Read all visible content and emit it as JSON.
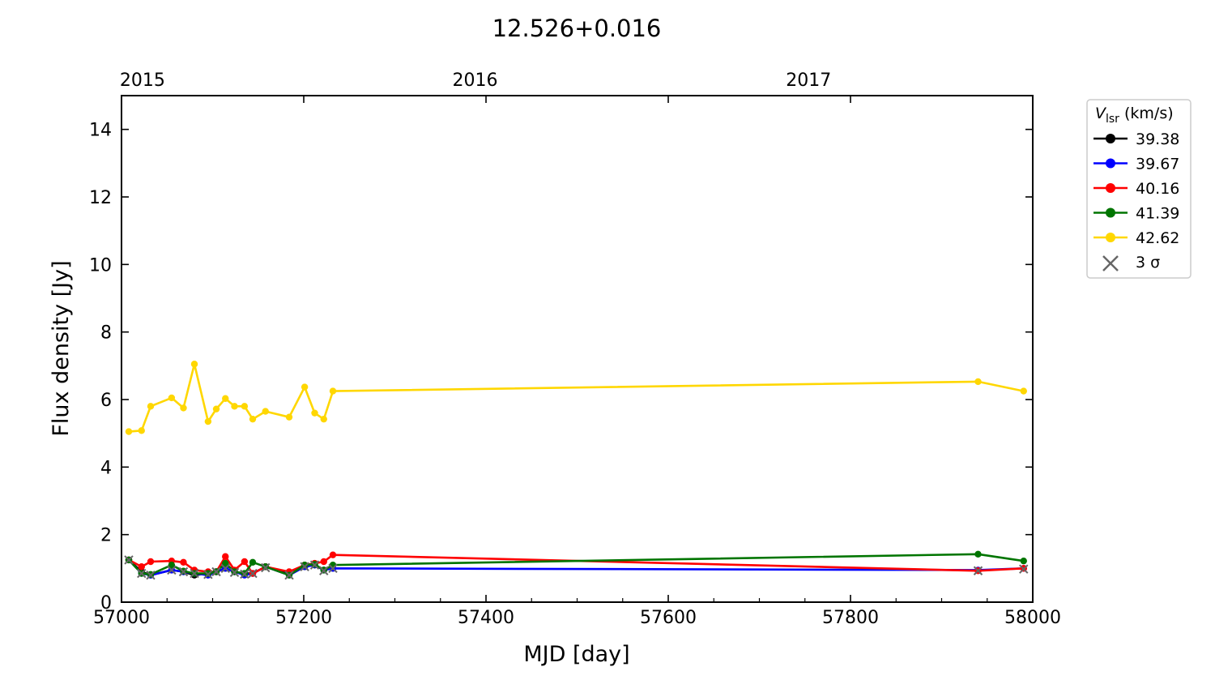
{
  "chart_data": {
    "type": "line",
    "title": "12.526+0.016",
    "xlabel": "MJD [day]",
    "ylabel": "Flux density [Jy]",
    "xlim": [
      57000,
      58000
    ],
    "ylim": [
      0,
      15
    ],
    "xticks": [
      57000,
      57200,
      57400,
      57600,
      57800,
      58000
    ],
    "xtick_labels": [
      "57000",
      "57200",
      "57400",
      "57600",
      "57800",
      "58000"
    ],
    "yticks": [
      0,
      2,
      4,
      6,
      8,
      10,
      12,
      14
    ],
    "ytick_labels": [
      "0",
      "2",
      "4",
      "6",
      "8",
      "10",
      "12",
      "14"
    ],
    "top_axis": {
      "ticks": [
        57023,
        57388,
        57754
      ],
      "labels": [
        "2015",
        "2016",
        "2017"
      ]
    },
    "grid": false,
    "legend": {
      "placement": "outside-right-top",
      "title_var": "V",
      "title_sub": "lsr",
      "title_rest": " (km/s)",
      "sigma_label": "3 σ"
    },
    "series": [
      {
        "name": "39.38",
        "color": "#000000",
        "x": [
          57008,
          57022,
          57032,
          57055,
          57068,
          57080,
          57095,
          57104,
          57114,
          57124,
          57135,
          57144,
          57158,
          57184,
          57201,
          57212,
          57222,
          57232
        ],
        "y": [
          1.25,
          0.9,
          0.8,
          0.95,
          0.9,
          0.8,
          0.85,
          0.9,
          1.0,
          0.9,
          0.85,
          0.85,
          1.05,
          0.85,
          1.05,
          1.1,
          0.95,
          1.0
        ]
      },
      {
        "name": "39.67",
        "color": "#0000ff",
        "x": [
          57008,
          57022,
          57032,
          57055,
          57068,
          57080,
          57095,
          57104,
          57114,
          57124,
          57135,
          57144,
          57158,
          57184,
          57201,
          57212,
          57222,
          57232,
          57940,
          57990
        ],
        "y": [
          1.25,
          0.85,
          0.8,
          0.95,
          0.9,
          0.85,
          0.8,
          0.9,
          1.0,
          0.9,
          0.8,
          0.85,
          1.05,
          0.8,
          1.05,
          1.1,
          0.95,
          1.0,
          0.95,
          1.0
        ]
      },
      {
        "name": "40.16",
        "color": "#ff0000",
        "x": [
          57008,
          57022,
          57032,
          57055,
          57068,
          57080,
          57095,
          57104,
          57114,
          57124,
          57135,
          57144,
          57158,
          57184,
          57201,
          57212,
          57222,
          57232,
          57940,
          57990
        ],
        "y": [
          1.25,
          1.05,
          1.2,
          1.22,
          1.18,
          0.95,
          0.9,
          0.9,
          1.35,
          0.95,
          1.2,
          0.85,
          1.05,
          0.9,
          1.1,
          1.15,
          1.2,
          1.4,
          0.93,
          1.0
        ]
      },
      {
        "name": "41.39",
        "color": "#007500",
        "x": [
          57008,
          57022,
          57032,
          57055,
          57068,
          57080,
          57095,
          57104,
          57114,
          57124,
          57135,
          57144,
          57158,
          57184,
          57201,
          57212,
          57222,
          57232,
          57940,
          57990
        ],
        "y": [
          1.25,
          0.85,
          0.82,
          1.1,
          0.92,
          0.85,
          0.85,
          0.9,
          1.15,
          0.9,
          0.85,
          1.18,
          1.05,
          0.8,
          1.1,
          1.12,
          0.95,
          1.1,
          1.42,
          1.22
        ]
      },
      {
        "name": "42.62",
        "color": "#ffd700",
        "x": [
          57008,
          57022,
          57032,
          57055,
          57068,
          57080,
          57095,
          57104,
          57114,
          57124,
          57135,
          57144,
          57158,
          57184,
          57201,
          57212,
          57222,
          57232,
          57940,
          57990
        ],
        "y": [
          5.05,
          5.08,
          5.8,
          6.05,
          5.75,
          7.05,
          5.35,
          5.72,
          6.03,
          5.8,
          5.8,
          5.42,
          5.65,
          5.48,
          6.37,
          5.6,
          5.42,
          6.25,
          6.53,
          6.25
        ]
      }
    ],
    "three_sigma_markers": {
      "color": "#666666",
      "x": [
        57008,
        57022,
        57032,
        57055,
        57068,
        57080,
        57095,
        57104,
        57114,
        57124,
        57135,
        57144,
        57158,
        57184,
        57201,
        57212,
        57222,
        57232,
        57940,
        57990
      ],
      "y": [
        1.25,
        0.85,
        0.8,
        0.95,
        0.9,
        0.85,
        0.82,
        0.9,
        1.0,
        0.88,
        0.83,
        0.85,
        1.02,
        0.8,
        1.05,
        1.1,
        0.93,
        1.0,
        0.93,
        0.98
      ]
    }
  }
}
